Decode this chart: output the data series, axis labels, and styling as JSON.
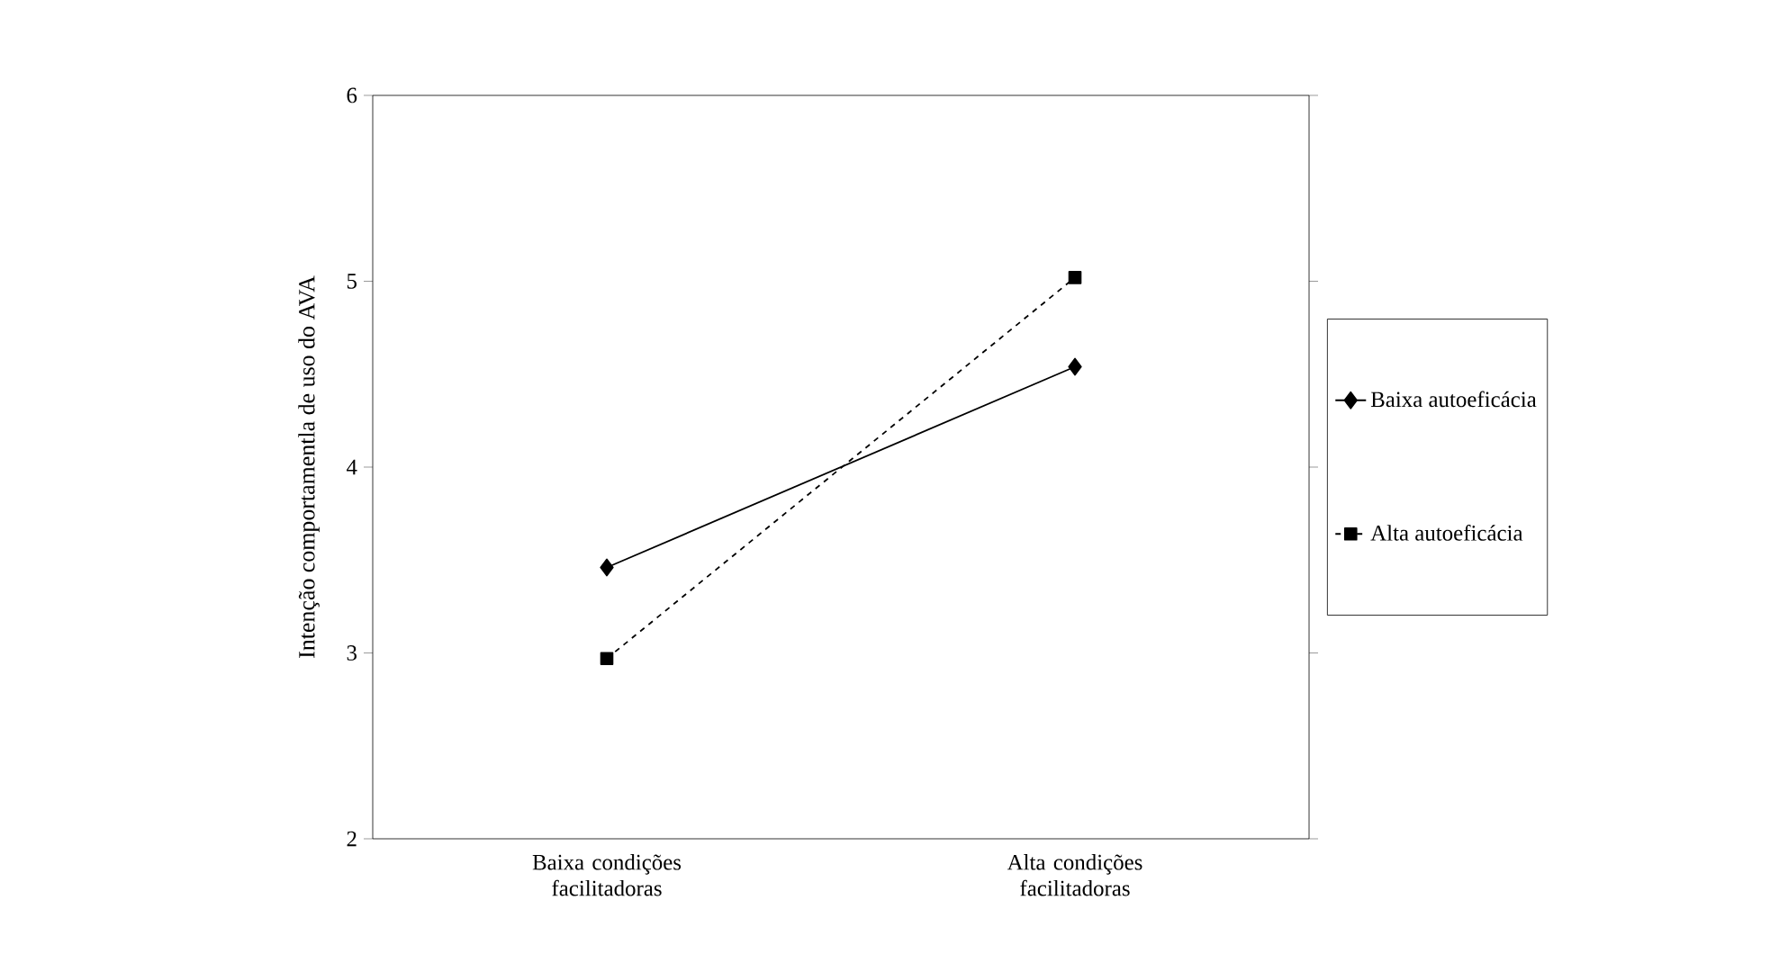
{
  "chart_data": {
    "type": "line",
    "ylabel": "Intenção comportamentla de uso do AVA",
    "categories": [
      "Baixa condições facilitadoras",
      "Alta condições facilitadoras"
    ],
    "series": [
      {
        "name": "Baixa autoeficácia",
        "color": "#000000",
        "values": [
          3.46,
          4.54
        ],
        "marker": "diamond",
        "line_style": "solid"
      },
      {
        "name": "Alta autoeficácia",
        "color": "#000000",
        "values": [
          2.97,
          5.02
        ],
        "marker": "square",
        "line_style": "dashed"
      }
    ],
    "ylim": [
      2,
      6
    ],
    "yticks": [
      2,
      3,
      4,
      5,
      6
    ],
    "legend": "right"
  }
}
